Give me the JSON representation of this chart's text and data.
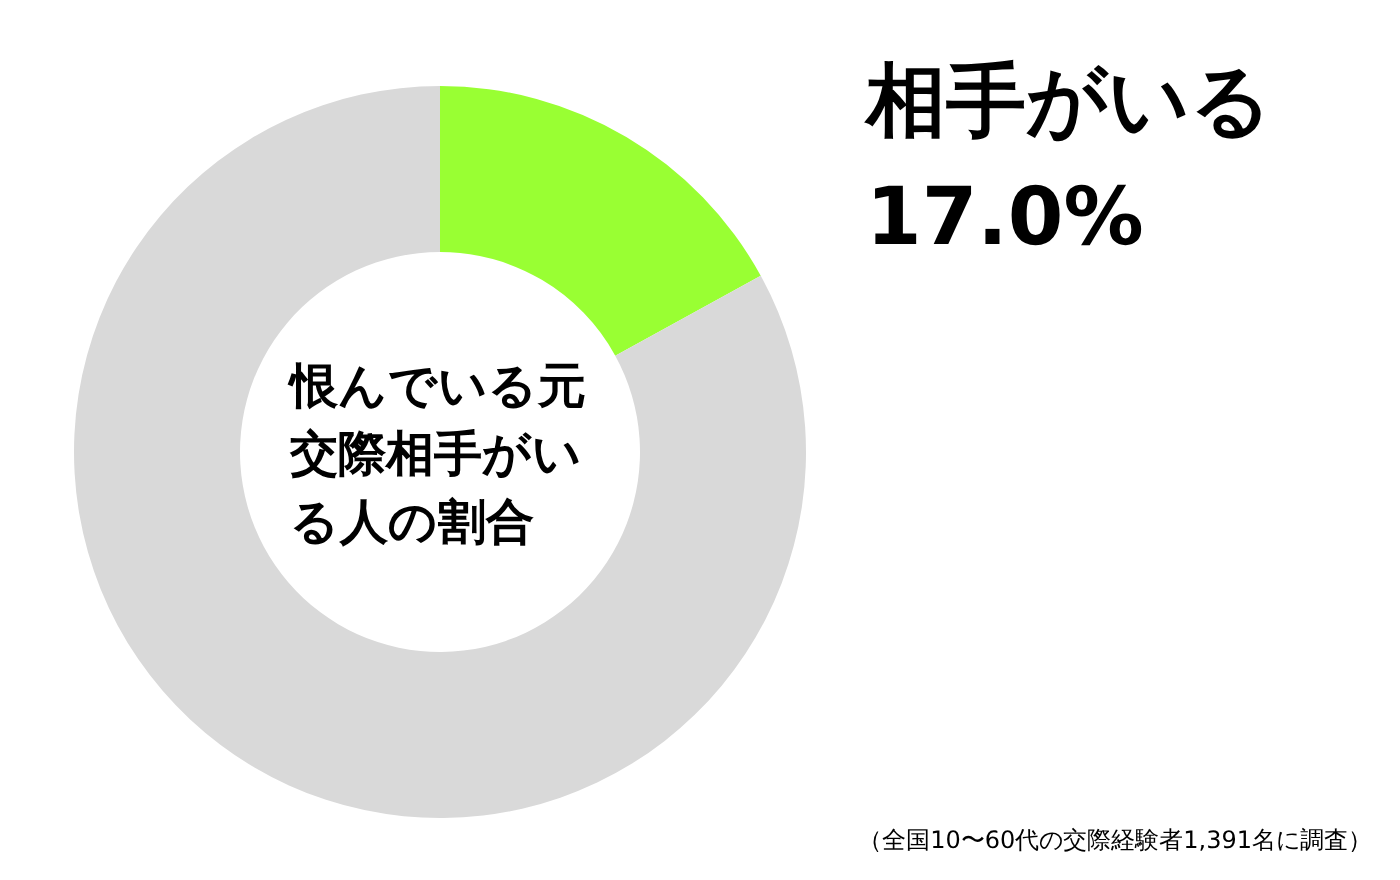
{
  "chart_data": {
    "type": "donut",
    "title": "恨んでいる元交際相手がいる人の割合",
    "categories": [
      "相手がいる",
      null
    ],
    "values": [
      17.0,
      83.0
    ],
    "colors": [
      "#99ff33",
      "#d9d9d9"
    ],
    "value_labels": [
      "17.0%",
      null
    ],
    "legend": false,
    "annotations": [
      "（全国10〜60代の交際経験者1,391名に調査）"
    ]
  }
}
